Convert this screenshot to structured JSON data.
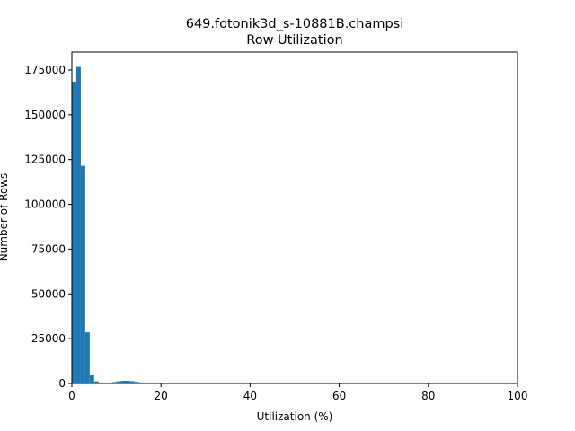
{
  "chart_data": {
    "type": "bar",
    "title": "649.fotonik3d_s-10881B.champsi",
    "subtitle": "Row Utilization",
    "xlabel": "Utilization (%)",
    "ylabel": "Number of Rows",
    "xlim": [
      0,
      100
    ],
    "ylim": [
      0,
      185000
    ],
    "xticks": [
      "0",
      "20",
      "40",
      "60",
      "80",
      "100"
    ],
    "yticks": [
      "0",
      "25000",
      "50000",
      "75000",
      "100000",
      "125000",
      "150000",
      "175000"
    ],
    "bin_width": 1,
    "bins": [
      {
        "x": 0,
        "value": 168500
      },
      {
        "x": 1,
        "value": 176700
      },
      {
        "x": 2,
        "value": 121500
      },
      {
        "x": 3,
        "value": 28500
      },
      {
        "x": 4,
        "value": 4500
      },
      {
        "x": 5,
        "value": 1200
      },
      {
        "x": 6,
        "value": 200
      },
      {
        "x": 7,
        "value": 100
      },
      {
        "x": 8,
        "value": 300
      },
      {
        "x": 9,
        "value": 800
      },
      {
        "x": 10,
        "value": 1200
      },
      {
        "x": 11,
        "value": 1500
      },
      {
        "x": 12,
        "value": 1500
      },
      {
        "x": 13,
        "value": 1300
      },
      {
        "x": 14,
        "value": 900
      },
      {
        "x": 15,
        "value": 600
      },
      {
        "x": 16,
        "value": 300
      },
      {
        "x": 17,
        "value": 150
      },
      {
        "x": 18,
        "value": 60
      },
      {
        "x": 19,
        "value": 30
      }
    ],
    "bar_color": "#1f77b4",
    "grid": false,
    "legend": false
  }
}
